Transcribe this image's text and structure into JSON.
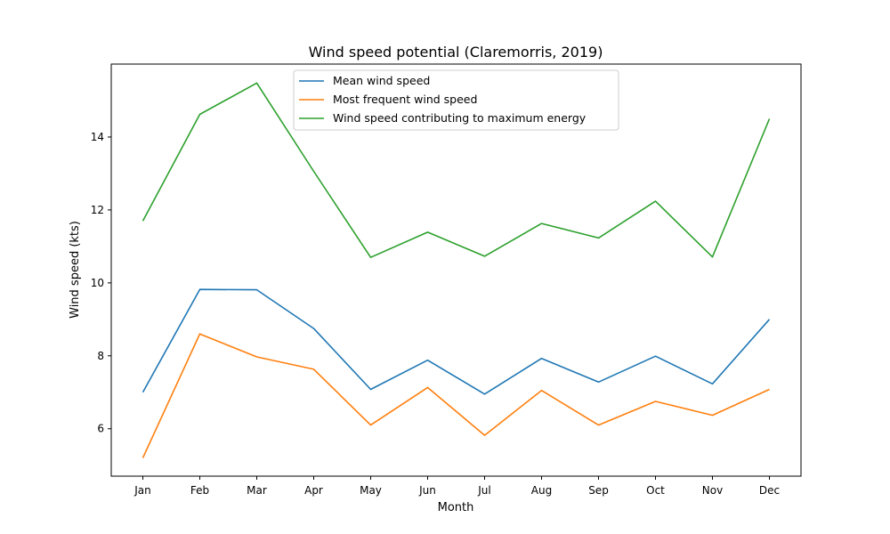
{
  "chart_data": {
    "type": "line",
    "title": "Wind speed potential (Claremorris, 2019)",
    "xlabel": "Month",
    "ylabel": "Wind speed (kts)",
    "categories": [
      "Jan",
      "Feb",
      "Mar",
      "Apr",
      "May",
      "Jun",
      "Jul",
      "Aug",
      "Sep",
      "Oct",
      "Nov",
      "Dec"
    ],
    "ylim": [
      4.7,
      16.0
    ],
    "yticks": [
      6,
      8,
      10,
      12,
      14
    ],
    "grid": false,
    "legend_position": "top-center",
    "series": [
      {
        "name": "Mean wind speed",
        "color": "#1f77b4",
        "values": [
          7.0,
          9.82,
          9.81,
          8.75,
          7.08,
          7.88,
          6.95,
          7.93,
          7.28,
          7.99,
          7.23,
          9.0
        ]
      },
      {
        "name": "Most frequent wind speed",
        "color": "#ff7f0e",
        "values": [
          5.2,
          8.6,
          7.97,
          7.63,
          6.1,
          7.13,
          5.82,
          7.05,
          6.1,
          6.75,
          6.37,
          7.08
        ]
      },
      {
        "name": "Wind speed contributing to maximum energy",
        "color": "#2ca02c",
        "values": [
          11.7,
          14.62,
          15.48,
          13.06,
          10.7,
          11.39,
          10.73,
          11.63,
          11.23,
          12.24,
          10.71,
          14.5
        ]
      }
    ]
  }
}
